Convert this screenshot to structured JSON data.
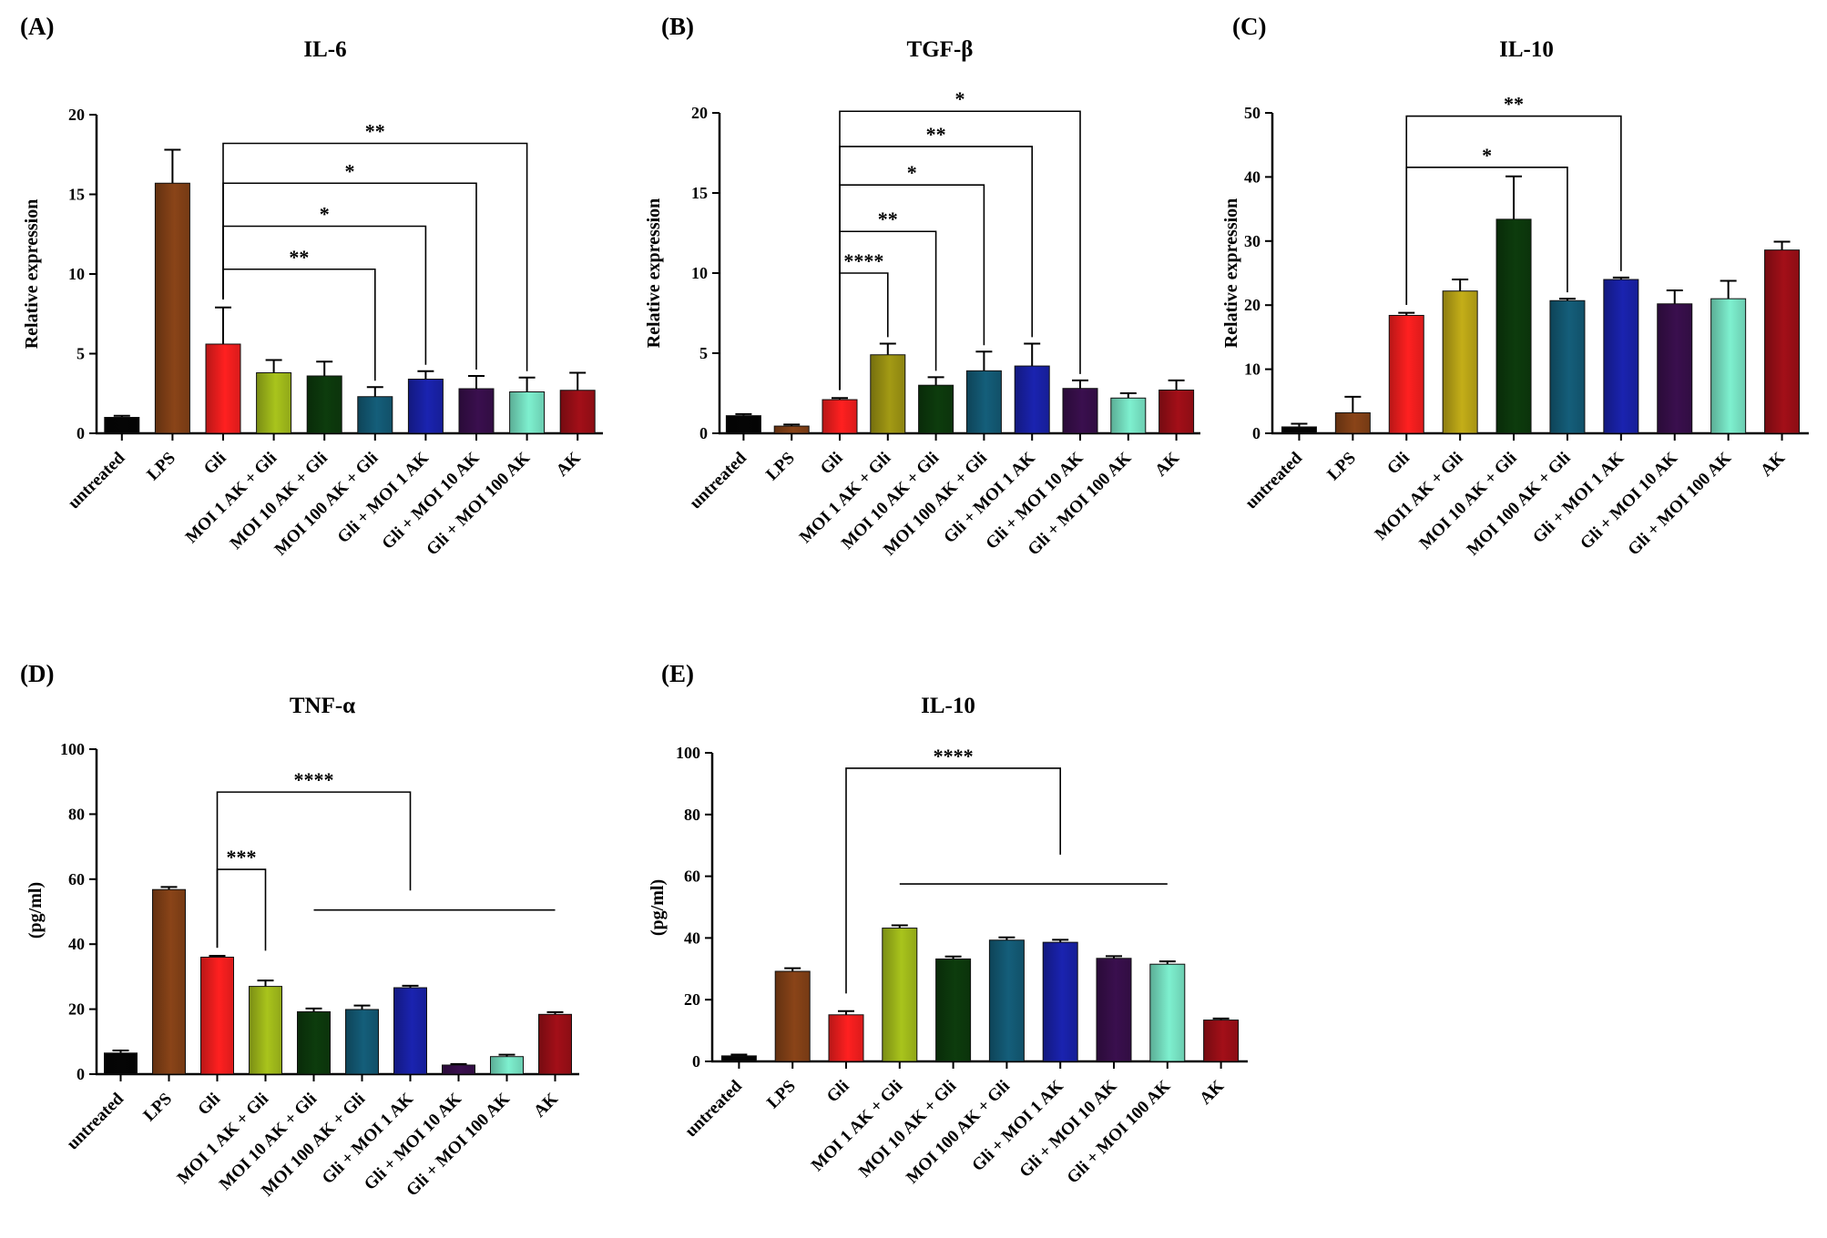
{
  "chart_data": [
    {
      "panel": "(A)",
      "type": "bar",
      "title": "IL-6",
      "ylabel": "Relative expression",
      "ylim": [
        0,
        20
      ],
      "yticks": [
        "0",
        "5",
        "10",
        "15",
        "20"
      ],
      "categories": [
        "untreated",
        "LPS",
        "Gli",
        "MOI 1 AK + Gli",
        "MOI 10 AK + Gli",
        "MOI 100 AK + Gli",
        "Gli + MOI 1 AK",
        "Gli + MOI 10 AK",
        "Gli + MOI 100 AK",
        "AK"
      ],
      "values": [
        1.0,
        15.7,
        5.6,
        3.8,
        3.6,
        2.3,
        3.4,
        2.8,
        2.6,
        2.7
      ],
      "errors": [
        0.1,
        2.1,
        2.3,
        0.8,
        0.9,
        0.6,
        0.5,
        0.8,
        0.9,
        1.1
      ],
      "colors": [
        "#050505",
        "#8a4418",
        "#ff2020",
        "#a9c41c",
        "#0d3c0d",
        "#145e7a",
        "#1a23b0",
        "#3a0f4e",
        "#7ef0cf",
        "#a30f18"
      ],
      "significance": [
        {
          "from": 2,
          "to": 5,
          "label": "**",
          "y": 10.3
        },
        {
          "from": 2,
          "to": 6,
          "label": "*",
          "y": 13.0
        },
        {
          "from": 2,
          "to": 7,
          "label": "*",
          "y": 15.7
        },
        {
          "from": 2,
          "to": 8,
          "label": "**",
          "y": 18.2
        }
      ],
      "plain_lines": []
    },
    {
      "panel": "(B)",
      "type": "bar",
      "title": "TGF-β",
      "ylabel": "Relative expression",
      "ylim": [
        0,
        20
      ],
      "yticks": [
        "0",
        "5",
        "10",
        "15",
        "20"
      ],
      "categories": [
        "untreated",
        "LPS",
        "Gli",
        "MOI 1 AK + Gli",
        "MOI 10 AK + Gli",
        "MOI 100 AK + Gli",
        "Gli + MOI 1 AK",
        "Gli + MOI 10 AK",
        "Gli + MOI 100 AK",
        "AK"
      ],
      "values": [
        1.1,
        0.45,
        2.1,
        4.9,
        3.0,
        3.9,
        4.2,
        2.8,
        2.2,
        2.7
      ],
      "errors": [
        0.1,
        0.1,
        0.1,
        0.7,
        0.5,
        1.2,
        1.4,
        0.5,
        0.3,
        0.6
      ],
      "colors": [
        "#050505",
        "#8a4418",
        "#ff2020",
        "#a39a14",
        "#0d3c0d",
        "#145e7a",
        "#1a23b0",
        "#3a0f4e",
        "#7ef0cf",
        "#a30f18"
      ],
      "significance": [
        {
          "from": 2,
          "to": 3,
          "label": "****",
          "y": 10.0
        },
        {
          "from": 2,
          "to": 4,
          "label": "**",
          "y": 12.6
        },
        {
          "from": 2,
          "to": 5,
          "label": "*",
          "y": 15.5
        },
        {
          "from": 2,
          "to": 6,
          "label": "**",
          "y": 17.9
        },
        {
          "from": 2,
          "to": 7,
          "label": "*",
          "y": 20.1
        }
      ],
      "plain_lines": []
    },
    {
      "panel": "(C)",
      "type": "bar",
      "title": "IL-10",
      "ylabel": "Relative expression",
      "ylim": [
        0,
        50
      ],
      "yticks": [
        "0",
        "10",
        "20",
        "30",
        "40",
        "50"
      ],
      "categories": [
        "untreated",
        "LPS",
        "Gli",
        "MOI1 AK + Gli",
        "MOI 10 AK + Gli",
        "MOI 100 AK + Gli",
        "Gli + MOI 1 AK",
        "Gli + MOI 10 AK",
        "Gli + MOI 100 AK",
        "AK"
      ],
      "values": [
        1.0,
        3.2,
        18.4,
        22.2,
        33.4,
        20.7,
        24.0,
        20.2,
        21.0,
        28.6
      ],
      "errors": [
        0.5,
        2.5,
        0.4,
        1.8,
        6.7,
        0.3,
        0.3,
        2.1,
        2.8,
        1.3
      ],
      "colors": [
        "#050505",
        "#8a4418",
        "#ff2020",
        "#c4ae18",
        "#0d3c0d",
        "#145e7a",
        "#1a23b0",
        "#3a0f4e",
        "#7ef0cf",
        "#a30f18"
      ],
      "significance": [
        {
          "from": 2,
          "to": 5,
          "label": "*",
          "y": 41.5
        },
        {
          "from": 2,
          "to": 6,
          "label": "**",
          "y": 49.5
        }
      ],
      "plain_lines": []
    },
    {
      "panel": "(D)",
      "type": "bar",
      "title": "TNF-α",
      "ylabel": "(pg/ml)",
      "ylim": [
        0,
        100
      ],
      "yticks": [
        "0",
        "20",
        "40",
        "60",
        "80",
        "100"
      ],
      "categories": [
        "untreated",
        "LPS",
        "Gli",
        "MOI 1 AK + Gli",
        "MOI 10 AK + Gli",
        "MOI 100 AK + Gli",
        "Gli + MOI 1 AK",
        "Gli + MOI 10 AK",
        "Gli + MOI 100 AK",
        "AK"
      ],
      "values": [
        6.5,
        56.8,
        36.0,
        27.0,
        19.2,
        19.9,
        26.6,
        2.8,
        5.4,
        18.4
      ],
      "errors": [
        0.8,
        0.8,
        0.4,
        1.8,
        1.0,
        1.2,
        0.6,
        0.3,
        0.6,
        0.7
      ],
      "colors": [
        "#050505",
        "#8a4418",
        "#ff2020",
        "#a9c41c",
        "#0d3c0d",
        "#145e7a",
        "#1a23b0",
        "#3a0f4e",
        "#7ef0cf",
        "#a30f18"
      ],
      "significance": [
        {
          "from": 2,
          "to": 3,
          "label": "***",
          "y": 63.0,
          "to_y": 38.0
        },
        {
          "from": 2,
          "to": 6,
          "label": "****",
          "y": 86.8,
          "to_y": 56.5
        }
      ],
      "plain_lines": [
        {
          "from": 4,
          "to": 9,
          "y": 50.5
        }
      ]
    },
    {
      "panel": "(E)",
      "type": "bar",
      "title": "IL-10",
      "ylabel": "(pg/ml)",
      "ylim": [
        0,
        100
      ],
      "yticks": [
        "0",
        "20",
        "40",
        "60",
        "80",
        "100"
      ],
      "categories": [
        "untreated",
        "LPS",
        "Gli",
        "MOI 1 AK + Gli",
        "MOI 10 AK + Gli",
        "MOI 100 AK + Gli",
        "Gli + MOI 1 AK",
        "Gli + MOI 10 AK",
        "Gli + MOI 100 AK",
        "AK"
      ],
      "values": [
        1.8,
        29.2,
        15.1,
        43.2,
        33.2,
        39.3,
        38.6,
        33.4,
        31.5,
        13.4
      ],
      "errors": [
        0.4,
        1.0,
        1.2,
        0.9,
        0.8,
        0.9,
        0.8,
        0.7,
        0.9,
        0.5
      ],
      "colors": [
        "#050505",
        "#8a4418",
        "#ff2020",
        "#a9c41c",
        "#0d3c0d",
        "#145e7a",
        "#1a23b0",
        "#3a0f4e",
        "#7ef0cf",
        "#a30f18"
      ],
      "significance": [
        {
          "from": 2,
          "to": 6,
          "label": "****",
          "y": 95.0,
          "from_y": 22.0,
          "to_y": 67.0
        }
      ],
      "plain_lines": [
        {
          "from": 3,
          "to": 8,
          "y": 57.5
        }
      ]
    }
  ]
}
